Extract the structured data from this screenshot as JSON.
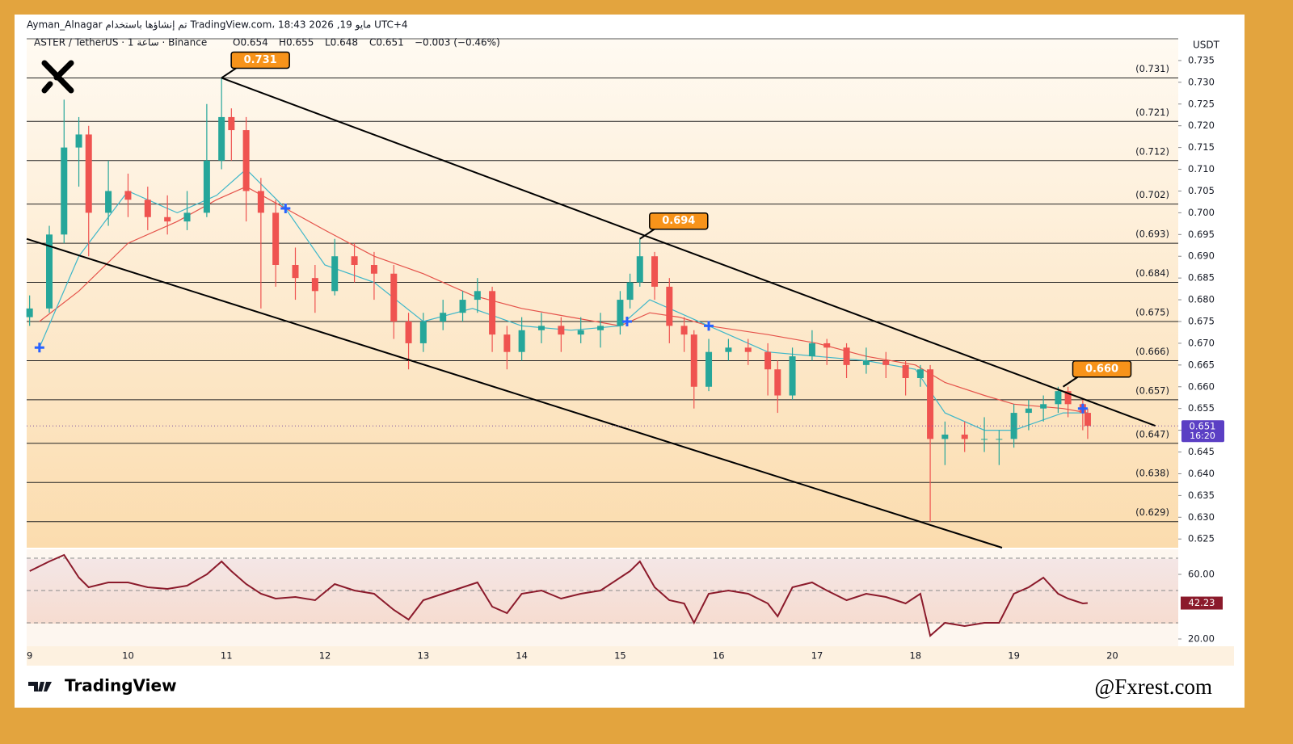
{
  "header": {
    "credit": "Ayman_Alnagar تم إنشاؤها باستخدام TradingView.com، 18:43 2026 ,19 مايو UTC+4",
    "symbol": "ASTER / TetherUS · 1 ساعة · Binance",
    "ohlc": [
      "O0.654",
      "H0.655",
      "L0.648",
      "C0.651",
      "−0.003 (−0.46%)"
    ],
    "currency": "USDT",
    "countdown": "16:20",
    "brand": "TradingView",
    "watermark": "@Fxrest.com"
  },
  "chart_data": {
    "type": "candlestick",
    "up_color": "#26a69a",
    "down_color": "#ef5350",
    "x": [
      9.0,
      9.2,
      9.35,
      9.5,
      9.6,
      9.8,
      10.0,
      10.2,
      10.4,
      10.6,
      10.8,
      10.95,
      11.05,
      11.2,
      11.35,
      11.5,
      11.7,
      11.9,
      12.1,
      12.3,
      12.5,
      12.7,
      12.85,
      13.0,
      13.2,
      13.4,
      13.55,
      13.7,
      13.85,
      14.0,
      14.2,
      14.4,
      14.6,
      14.8,
      15.0,
      15.1,
      15.2,
      15.35,
      15.5,
      15.65,
      15.75,
      15.9,
      16.1,
      16.3,
      16.5,
      16.6,
      16.75,
      16.95,
      17.1,
      17.3,
      17.5,
      17.7,
      17.9,
      18.05,
      18.15,
      18.3,
      18.5,
      18.7,
      18.85,
      19.0,
      19.15,
      19.3,
      19.45,
      19.55,
      19.7,
      19.75
    ],
    "ohlc": [
      [
        0.676,
        0.681,
        0.674,
        0.678
      ],
      [
        0.678,
        0.697,
        0.677,
        0.695
      ],
      [
        0.695,
        0.726,
        0.693,
        0.715
      ],
      [
        0.715,
        0.722,
        0.706,
        0.718
      ],
      [
        0.718,
        0.72,
        0.69,
        0.7
      ],
      [
        0.7,
        0.712,
        0.697,
        0.705
      ],
      [
        0.705,
        0.709,
        0.699,
        0.703
      ],
      [
        0.703,
        0.706,
        0.696,
        0.699
      ],
      [
        0.699,
        0.704,
        0.695,
        0.698
      ],
      [
        0.698,
        0.705,
        0.696,
        0.7
      ],
      [
        0.7,
        0.725,
        0.699,
        0.712
      ],
      [
        0.712,
        0.731,
        0.71,
        0.722
      ],
      [
        0.722,
        0.724,
        0.712,
        0.719
      ],
      [
        0.719,
        0.722,
        0.698,
        0.705
      ],
      [
        0.705,
        0.708,
        0.678,
        0.7
      ],
      [
        0.7,
        0.703,
        0.683,
        0.688
      ],
      [
        0.688,
        0.692,
        0.68,
        0.685
      ],
      [
        0.685,
        0.688,
        0.677,
        0.682
      ],
      [
        0.682,
        0.694,
        0.681,
        0.69
      ],
      [
        0.69,
        0.693,
        0.684,
        0.688
      ],
      [
        0.688,
        0.691,
        0.68,
        0.686
      ],
      [
        0.686,
        0.688,
        0.671,
        0.675
      ],
      [
        0.675,
        0.677,
        0.664,
        0.67
      ],
      [
        0.67,
        0.677,
        0.668,
        0.675
      ],
      [
        0.675,
        0.68,
        0.673,
        0.677
      ],
      [
        0.677,
        0.682,
        0.675,
        0.68
      ],
      [
        0.68,
        0.685,
        0.677,
        0.682
      ],
      [
        0.682,
        0.683,
        0.668,
        0.672
      ],
      [
        0.672,
        0.674,
        0.664,
        0.668
      ],
      [
        0.668,
        0.676,
        0.666,
        0.673
      ],
      [
        0.673,
        0.677,
        0.67,
        0.674
      ],
      [
        0.674,
        0.676,
        0.668,
        0.672
      ],
      [
        0.672,
        0.676,
        0.67,
        0.673
      ],
      [
        0.673,
        0.677,
        0.669,
        0.674
      ],
      [
        0.674,
        0.682,
        0.672,
        0.68
      ],
      [
        0.68,
        0.686,
        0.678,
        0.684
      ],
      [
        0.684,
        0.694,
        0.683,
        0.69
      ],
      [
        0.69,
        0.691,
        0.68,
        0.683
      ],
      [
        0.683,
        0.685,
        0.67,
        0.674
      ],
      [
        0.674,
        0.676,
        0.668,
        0.672
      ],
      [
        0.672,
        0.673,
        0.655,
        0.66
      ],
      [
        0.66,
        0.671,
        0.659,
        0.668
      ],
      [
        0.668,
        0.671,
        0.666,
        0.669
      ],
      [
        0.669,
        0.671,
        0.665,
        0.668
      ],
      [
        0.668,
        0.67,
        0.658,
        0.664
      ],
      [
        0.664,
        0.666,
        0.654,
        0.658
      ],
      [
        0.658,
        0.669,
        0.657,
        0.667
      ],
      [
        0.667,
        0.673,
        0.666,
        0.67
      ],
      [
        0.67,
        0.671,
        0.665,
        0.669
      ],
      [
        0.669,
        0.67,
        0.662,
        0.665
      ],
      [
        0.665,
        0.669,
        0.663,
        0.666
      ],
      [
        0.666,
        0.668,
        0.662,
        0.665
      ],
      [
        0.665,
        0.666,
        0.658,
        0.662
      ],
      [
        0.662,
        0.665,
        0.66,
        0.664
      ],
      [
        0.664,
        0.665,
        0.629,
        0.648
      ],
      [
        0.648,
        0.652,
        0.642,
        0.649
      ],
      [
        0.649,
        0.652,
        0.645,
        0.648
      ],
      [
        0.648,
        0.653,
        0.645,
        0.648
      ],
      [
        0.648,
        0.65,
        0.642,
        0.648
      ],
      [
        0.648,
        0.656,
        0.646,
        0.654
      ],
      [
        0.654,
        0.657,
        0.65,
        0.655
      ],
      [
        0.655,
        0.658,
        0.652,
        0.656
      ],
      [
        0.656,
        0.66,
        0.654,
        0.659
      ],
      [
        0.659,
        0.66,
        0.653,
        0.656
      ],
      [
        0.656,
        0.657,
        0.65,
        0.654
      ],
      [
        0.654,
        0.655,
        0.648,
        0.651
      ]
    ],
    "ma_x": [
      9.1,
      9.5,
      10.0,
      10.5,
      10.9,
      11.2,
      11.6,
      12.0,
      12.5,
      13.0,
      13.5,
      14.0,
      14.5,
      15.0,
      15.3,
      15.6,
      15.9,
      16.5,
      17.0,
      17.5,
      18.0,
      18.3,
      18.7,
      19.0,
      19.5,
      19.75
    ],
    "ma_fast": {
      "color": "#3fb7c9",
      "values": [
        0.669,
        0.69,
        0.705,
        0.7,
        0.704,
        0.71,
        0.701,
        0.688,
        0.684,
        0.675,
        0.678,
        0.674,
        0.673,
        0.674,
        0.68,
        0.677,
        0.674,
        0.668,
        0.667,
        0.666,
        0.664,
        0.654,
        0.65,
        0.65,
        0.654,
        0.654
      ]
    },
    "ma_slow": {
      "color": "#e5534b",
      "values": [
        0.675,
        0.682,
        0.693,
        0.698,
        0.703,
        0.706,
        0.701,
        0.696,
        0.69,
        0.686,
        0.681,
        0.678,
        0.676,
        0.674,
        0.677,
        0.676,
        0.674,
        0.672,
        0.67,
        0.667,
        0.665,
        0.661,
        0.658,
        0.656,
        0.655,
        0.654
      ]
    },
    "levels": [
      {
        "value": 0.731,
        "label": "(0.731)"
      },
      {
        "value": 0.721,
        "label": "(0.721)"
      },
      {
        "value": 0.712,
        "label": "(0.712)"
      },
      {
        "value": 0.702,
        "label": "(0.702)"
      },
      {
        "value": 0.693,
        "label": "(0.693)"
      },
      {
        "value": 0.684,
        "label": "(0.684)"
      },
      {
        "value": 0.675,
        "label": "(0.675)"
      },
      {
        "value": 0.666,
        "label": "(0.666)"
      },
      {
        "value": 0.657,
        "label": "(0.657)"
      },
      {
        "value": 0.647,
        "label": "(0.647)"
      },
      {
        "value": 0.638,
        "label": "(0.638)"
      },
      {
        "value": 0.629,
        "label": "(0.629)"
      }
    ],
    "trendlines": [
      {
        "x": [
          10.95,
          20.44
        ],
        "y": [
          0.731,
          0.651
        ]
      },
      {
        "x": [
          8.97,
          18.88
        ],
        "y": [
          0.694,
          0.623
        ]
      }
    ],
    "annotations": [
      {
        "x": 10.95,
        "value": 0.731
      },
      {
        "x": 15.2,
        "value": 0.694
      },
      {
        "x": 19.5,
        "value": 0.66,
        "label": "0.660"
      }
    ],
    "markers": {
      "color": "#2962ff",
      "x": [
        9.1,
        11.6,
        15.07,
        15.9,
        19.7
      ],
      "y": [
        0.669,
        0.701,
        0.675,
        0.674,
        0.655
      ]
    },
    "xlim": [
      8.97,
      20.67
    ],
    "xticks": [
      9,
      10,
      11,
      12,
      13,
      14,
      15,
      16,
      17,
      18,
      19,
      20
    ],
    "ylim": [
      0.623,
      0.74
    ],
    "yticks": [
      0.625,
      {
        "value": 0.63,
        "label": "0.630"
      },
      0.635,
      {
        "value": 0.64,
        "label": "0.640"
      },
      0.645,
      {
        "value": 0.65,
        "label": "0.650"
      },
      0.655,
      {
        "value": 0.66,
        "label": "0.660"
      },
      0.665,
      {
        "value": 0.67,
        "label": "0.670"
      },
      0.675,
      {
        "value": 0.68,
        "label": "0.680"
      },
      0.685,
      {
        "value": 0.69,
        "label": "0.690"
      },
      0.695,
      {
        "value": 0.7,
        "label": "0.700"
      },
      0.705,
      {
        "value": 0.71,
        "label": "0.710"
      },
      0.715,
      {
        "value": 0.72,
        "label": "0.720"
      },
      0.725,
      {
        "value": 0.73,
        "label": "0.730"
      },
      0.735
    ],
    "rsi": {
      "color": "#8b1a2b",
      "ylim": [
        15.5,
        75.5
      ],
      "levels": [
        70,
        50,
        30
      ],
      "yticks": [
        {
          "value": 60,
          "label": "60.00"
        },
        {
          "value": 20,
          "label": "20.00"
        }
      ],
      "values": [
        62,
        68,
        72,
        58,
        52,
        55,
        55,
        52,
        51,
        53,
        60,
        68,
        62,
        54,
        48,
        45,
        46,
        44,
        54,
        50,
        48,
        38,
        32,
        44,
        48,
        52,
        55,
        40,
        36,
        48,
        50,
        45,
        48,
        50,
        58,
        62,
        68,
        52,
        44,
        42,
        30,
        48,
        50,
        48,
        42,
        34,
        52,
        55,
        50,
        44,
        48,
        46,
        42,
        48,
        22,
        30,
        28,
        30,
        30,
        48,
        52,
        58,
        48,
        45,
        42,
        42.23
      ]
    }
  }
}
